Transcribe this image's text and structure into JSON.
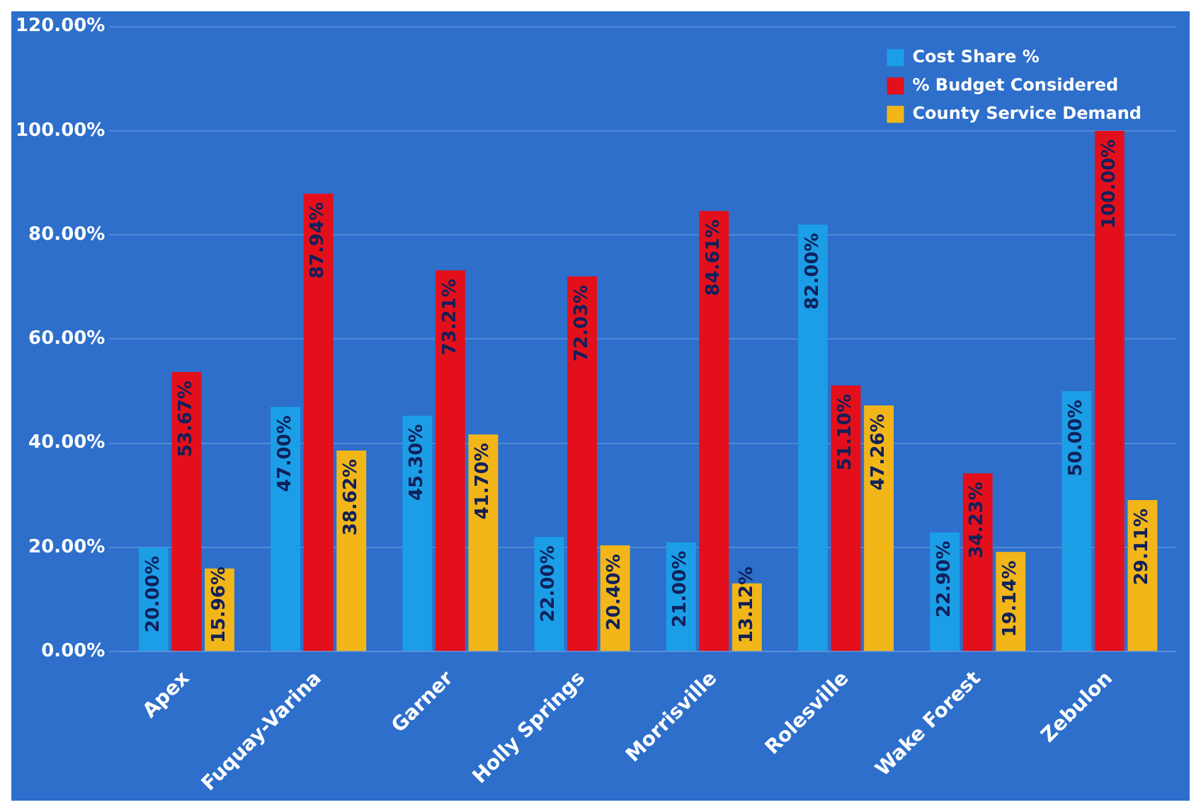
{
  "chart_data": {
    "type": "bar",
    "categories": [
      "Apex",
      "Fuquay-Varina",
      "Garner",
      "Holly Springs",
      "Morrisville",
      "Rolesville",
      "Wake Forest",
      "Zebulon"
    ],
    "series": [
      {
        "name": "Cost Share %",
        "color": "#1c9ee6",
        "values": [
          20.0,
          47.0,
          45.3,
          22.0,
          21.0,
          82.0,
          22.9,
          50.0
        ],
        "value_labels": [
          "20.00%",
          "47.00%",
          "45.30%",
          "22.00%",
          "21.00%",
          "82.00%",
          "22.90%",
          "50.00%"
        ]
      },
      {
        "name": "% Budget Considered",
        "color": "#e3101c",
        "values": [
          53.67,
          87.94,
          73.21,
          72.03,
          84.61,
          51.1,
          34.23,
          100.0
        ],
        "value_labels": [
          "53.67%",
          "87.94%",
          "73.21%",
          "72.03%",
          "84.61%",
          "51.10%",
          "34.23%",
          "100.00%"
        ]
      },
      {
        "name": "County Service Demand",
        "color": "#f2b619",
        "values": [
          15.96,
          38.62,
          41.7,
          20.4,
          13.12,
          47.26,
          19.14,
          29.11
        ],
        "value_labels": [
          "15.96%",
          "38.62%",
          "41.70%",
          "20.40%",
          "13.12%",
          "47.26%",
          "19.14%",
          "29.11%"
        ]
      }
    ],
    "ylim": [
      0,
      120
    ],
    "yticks": [
      {
        "value": 0,
        "label": "0.00%"
      },
      {
        "value": 20,
        "label": "20.00%"
      },
      {
        "value": 40,
        "label": "40.00%"
      },
      {
        "value": 60,
        "label": "60.00%"
      },
      {
        "value": 80,
        "label": "80.00%"
      },
      {
        "value": 100,
        "label": "100.00%"
      },
      {
        "value": 120,
        "label": "120.00%"
      }
    ],
    "grid": "y",
    "legend": "top right"
  }
}
